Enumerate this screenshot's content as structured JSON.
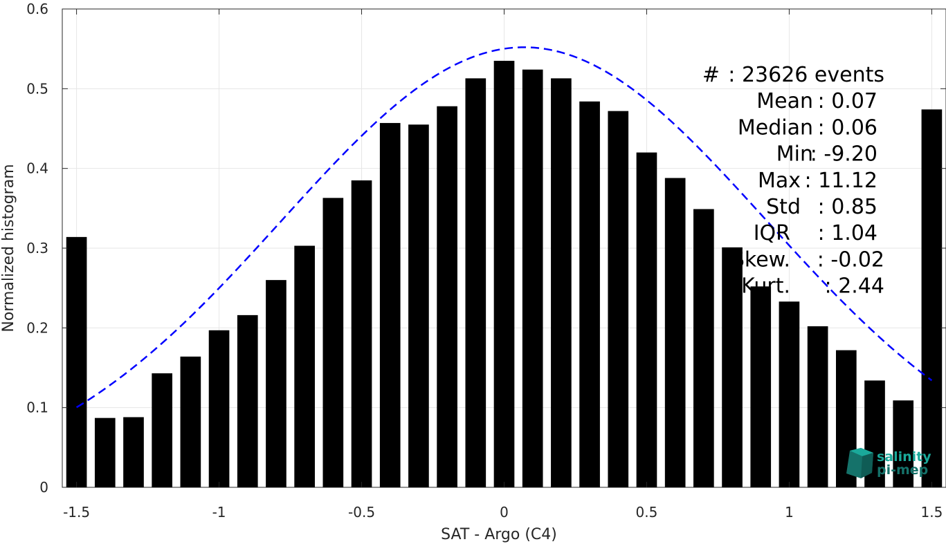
{
  "chart_data": {
    "type": "bar",
    "xlabel": "SAT - Argo (C4)",
    "ylabel": "Normalized histogram",
    "xlim": [
      -1.55,
      1.55
    ],
    "ylim": [
      0,
      0.6
    ],
    "grid": true,
    "x_ticks": [
      -1.5,
      -1,
      -0.5,
      0,
      0.5,
      1,
      1.5
    ],
    "x_tick_labels": [
      "-1.5",
      "-1",
      "-0.5",
      "0",
      "0.5",
      "1",
      "1.5"
    ],
    "y_ticks": [
      0,
      0.1,
      0.2,
      0.3,
      0.4,
      0.5,
      0.6
    ],
    "y_tick_labels": [
      "0",
      "0.1",
      "0.2",
      "0.3",
      "0.4",
      "0.5",
      "0.6"
    ],
    "bar_color": "#000000",
    "fit_color": "#0000ff",
    "bars": {
      "x": [
        -1.5,
        -1.4,
        -1.3,
        -1.2,
        -1.1,
        -1.0,
        -0.9,
        -0.8,
        -0.7,
        -0.6,
        -0.5,
        -0.4,
        -0.3,
        -0.2,
        -0.1,
        0.0,
        0.1,
        0.2,
        0.3,
        0.4,
        0.5,
        0.6,
        0.7,
        0.8,
        0.9,
        1.0,
        1.1,
        1.2,
        1.3,
        1.4,
        1.5
      ],
      "values": [
        0.314,
        0.087,
        0.088,
        0.143,
        0.164,
        0.197,
        0.216,
        0.26,
        0.303,
        0.363,
        0.385,
        0.457,
        0.455,
        0.478,
        0.513,
        0.535,
        0.524,
        0.513,
        0.484,
        0.472,
        0.42,
        0.388,
        0.349,
        0.301,
        0.252,
        0.233,
        0.202,
        0.172,
        0.134,
        0.109,
        0.474
      ]
    },
    "fit": {
      "style": "dashed",
      "mean": 0.07,
      "std": 0.85,
      "peak": 0.552,
      "x_range": [
        -1.5,
        1.5
      ]
    },
    "stats": [
      {
        "label": "#  ",
        "value": ": 23626 events"
      },
      {
        "label": "Mean ",
        "value": ": 0.07"
      },
      {
        "label": "Median ",
        "value": ": 0.06"
      },
      {
        "label": "Min ",
        "value": ": -9.20"
      },
      {
        "label": "Max ",
        "value": ": 11.12"
      },
      {
        "label": "Std ",
        "value": ": 0.85"
      },
      {
        "label": "IQR ",
        "value": ": 1.04"
      },
      {
        "label": "Skew. ",
        "value": ": -0.02"
      },
      {
        "label": "Kurt. ",
        "value": ": 2.44"
      }
    ]
  },
  "logo": {
    "line1": "salinity",
    "line2": "pi-mep",
    "color_primary": "#1aa99a",
    "color_secondary": "#15726a"
  }
}
